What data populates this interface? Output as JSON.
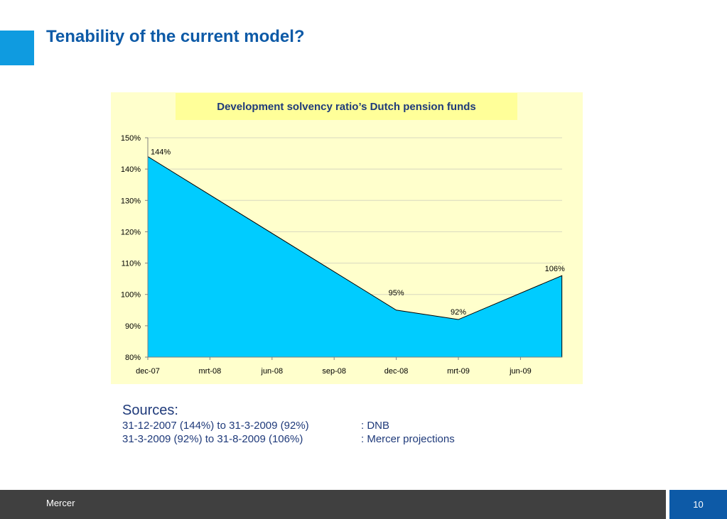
{
  "slide": {
    "title": "Tenability of the current model?",
    "page_number": "10",
    "brand": "Mercer"
  },
  "colors": {
    "accent": "#0f9be0",
    "title": "#0d5aa7",
    "area_fill": "#00ccff",
    "chart_background": "#ffffcc",
    "title_box": "#ffff99",
    "footer_bar": "#404040"
  },
  "chart_data": {
    "type": "area",
    "title": "Development solvency ratio’s Dutch pension funds",
    "x_tick_labels": [
      "dec-07",
      "mrt-08",
      "jun-08",
      "sep-08",
      "dec-08",
      "mrt-09",
      "jun-09"
    ],
    "y_tick_labels": [
      "80%",
      "90%",
      "100%",
      "110%",
      "120%",
      "130%",
      "140%",
      "150%"
    ],
    "ylim": [
      80,
      150
    ],
    "y_unit": "%",
    "grid": true,
    "points": [
      {
        "x": "dec-07",
        "y": 144,
        "label": "144%"
      },
      {
        "x": "dec-08",
        "y": 95,
        "label": "95%"
      },
      {
        "x": "mrt-09",
        "y": 92,
        "label": "92%"
      },
      {
        "x": "aug-09",
        "y": 106,
        "label": "106%"
      }
    ]
  },
  "sources": {
    "heading": "Sources:",
    "rows": [
      {
        "range": "31-12-2007 (144%) to 31-3-2009 (92%)",
        "source": ": DNB"
      },
      {
        "range": "31-3-2009 (92%) to 31-8-2009 (106%)",
        "source": ": Mercer projections"
      }
    ]
  }
}
